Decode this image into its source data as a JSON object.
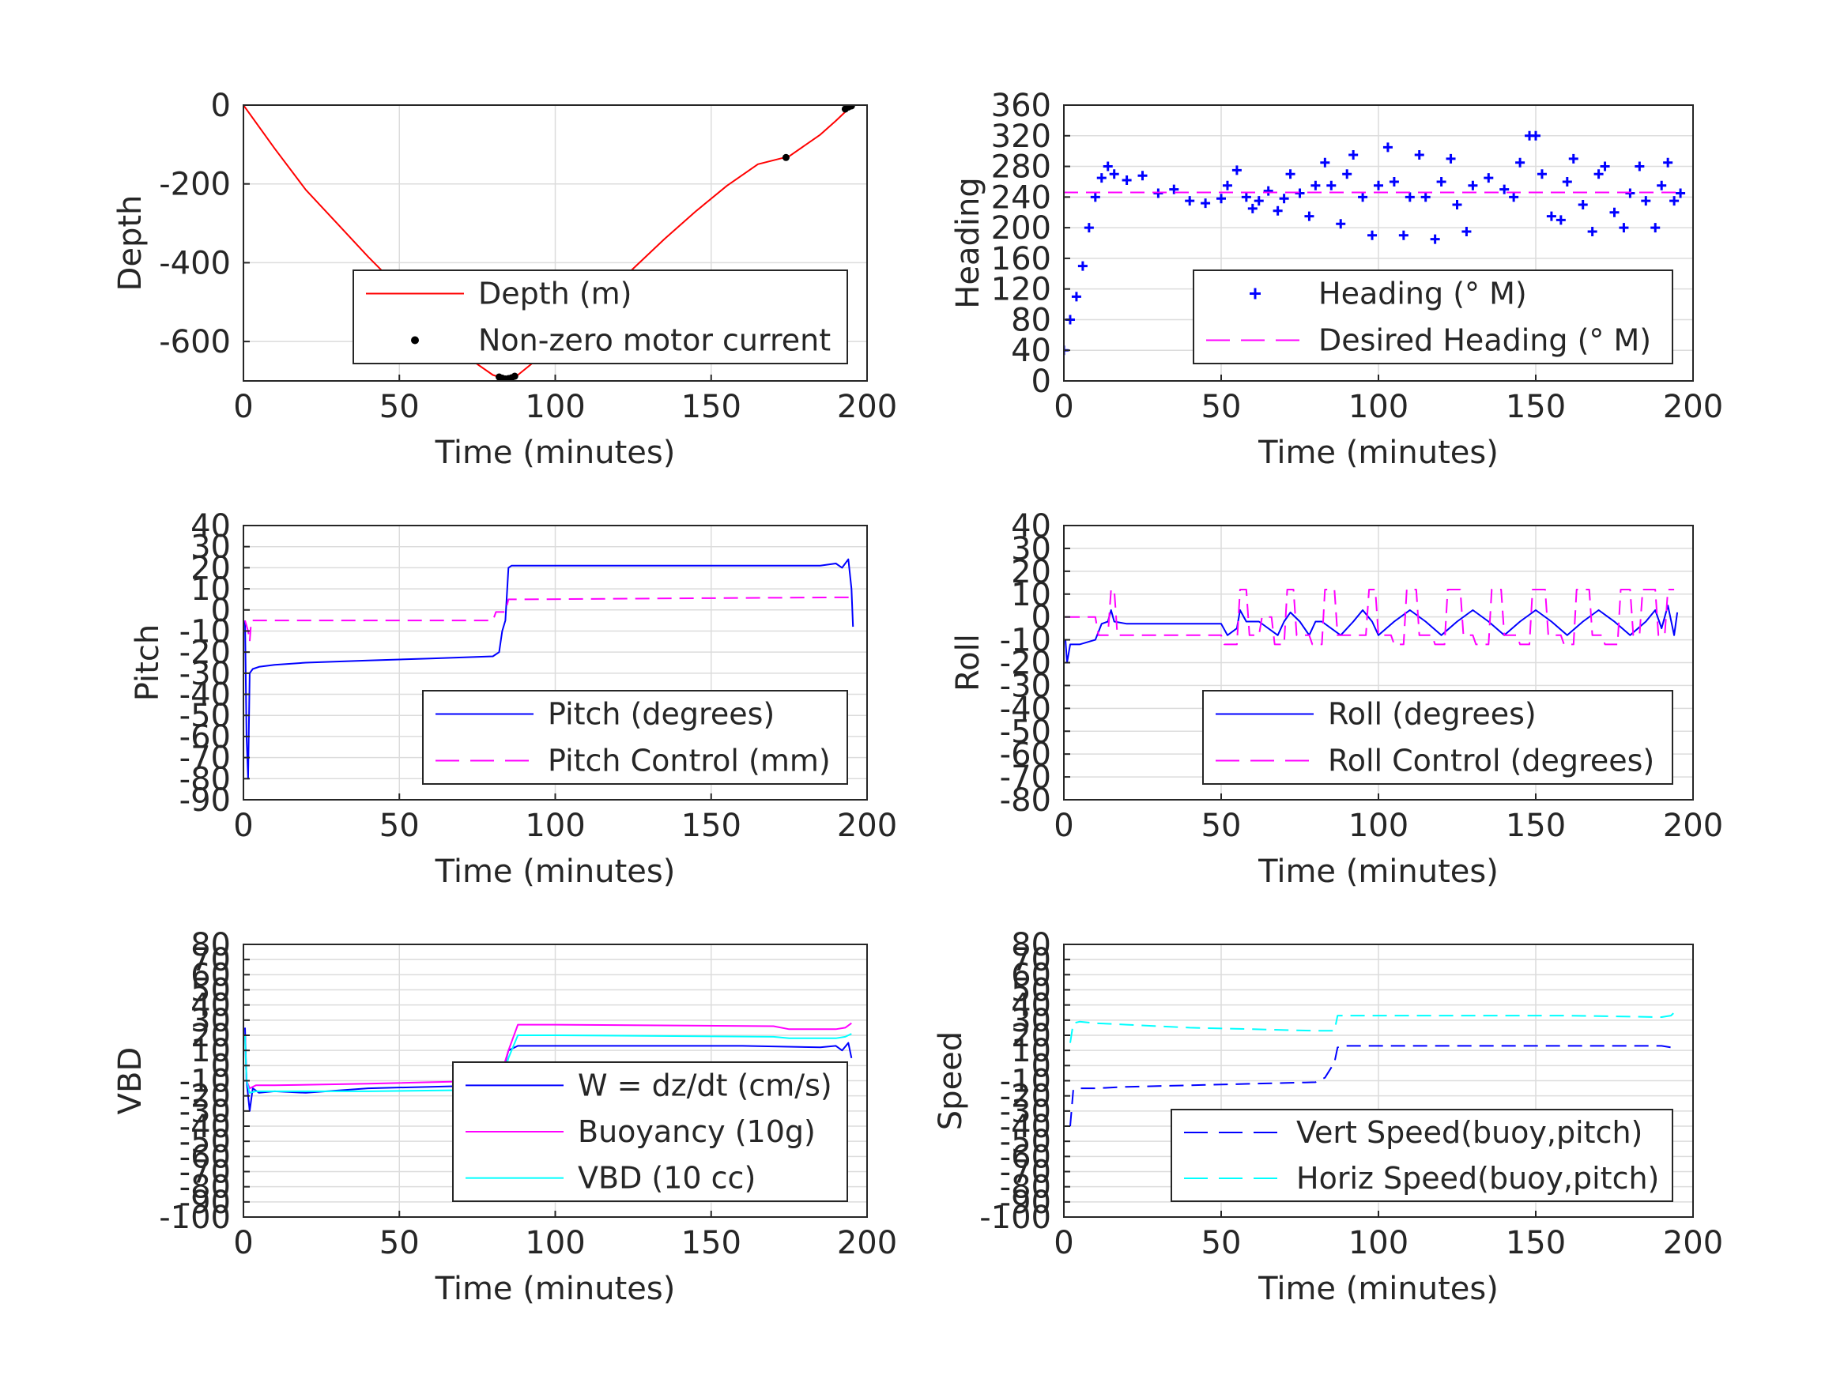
{
  "figure": {
    "background": "#ffffff",
    "grid_color": "#dcdcdc",
    "axis_color": "#262626"
  },
  "chart_data": [
    {
      "id": "depth",
      "type": "line",
      "xlabel": "Time (minutes)",
      "ylabel": "Depth",
      "xlim": [
        0,
        200
      ],
      "ylim": [
        -700,
        0
      ],
      "xticks": [
        0,
        50,
        100,
        150,
        200
      ],
      "xtick_labels": [
        "0",
        "50",
        "100",
        "150",
        "200"
      ],
      "yticks": [
        -600,
        -400,
        -200,
        0
      ],
      "ytick_labels": [
        "-600",
        "-400",
        "-200",
        "0"
      ],
      "grid": true,
      "legend_position": "bottom-right",
      "series": [
        {
          "name": "Depth (m)",
          "style": "line",
          "color": "#ff0000",
          "x": [
            0,
            10,
            20,
            30,
            40,
            50,
            60,
            70,
            80,
            84,
            88,
            95,
            105,
            115,
            125,
            135,
            145,
            155,
            165,
            175,
            185,
            190,
            195
          ],
          "y": [
            0,
            -110,
            -215,
            -300,
            -385,
            -465,
            -550,
            -630,
            -685,
            -695,
            -685,
            -640,
            -565,
            -490,
            -415,
            -340,
            -270,
            -205,
            -150,
            -130,
            -75,
            -40,
            -2
          ]
        },
        {
          "name": "Non-zero motor current",
          "style": "points",
          "color": "#000000",
          "x": [
            82,
            83,
            84,
            85,
            86,
            87,
            174,
            193,
            194,
            195
          ],
          "y": [
            -690,
            -693,
            -695,
            -694,
            -692,
            -688,
            -133,
            -10,
            -5,
            -2
          ]
        }
      ]
    },
    {
      "id": "heading",
      "type": "scatter",
      "xlabel": "Time (minutes)",
      "ylabel": "Heading",
      "xlim": [
        0,
        200
      ],
      "ylim": [
        0,
        360
      ],
      "xticks": [
        0,
        50,
        100,
        150,
        200
      ],
      "xtick_labels": [
        "0",
        "50",
        "100",
        "150",
        "200"
      ],
      "yticks": [
        0,
        40,
        80,
        120,
        160,
        200,
        240,
        280,
        320,
        360
      ],
      "ytick_labels": [
        "0",
        "40",
        "80",
        "120",
        "160",
        "200",
        "240",
        "280",
        "320",
        "360"
      ],
      "grid": true,
      "legend_position": "bottom-right",
      "series": [
        {
          "name": "Heading (° M)",
          "style": "markers",
          "color": "#0000ff",
          "x": [
            0,
            2,
            4,
            6,
            8,
            10,
            12,
            14,
            16,
            20,
            25,
            30,
            35,
            40,
            45,
            50,
            52,
            55,
            58,
            60,
            62,
            65,
            68,
            70,
            72,
            75,
            78,
            80,
            83,
            85,
            88,
            90,
            92,
            95,
            98,
            100,
            103,
            105,
            108,
            110,
            113,
            115,
            118,
            120,
            123,
            125,
            128,
            130,
            135,
            140,
            143,
            145,
            148,
            150,
            152,
            155,
            158,
            160,
            162,
            165,
            168,
            170,
            172,
            175,
            178,
            180,
            183,
            185,
            188,
            190,
            192,
            194,
            196
          ],
          "y": [
            40,
            80,
            110,
            150,
            200,
            240,
            265,
            280,
            270,
            262,
            268,
            245,
            250,
            235,
            232,
            238,
            255,
            275,
            240,
            225,
            235,
            248,
            222,
            238,
            270,
            245,
            215,
            255,
            285,
            255,
            205,
            270,
            295,
            240,
            190,
            255,
            305,
            260,
            190,
            240,
            295,
            240,
            185,
            260,
            290,
            230,
            195,
            255,
            265,
            250,
            240,
            285,
            320,
            320,
            270,
            215,
            210,
            260,
            290,
            230,
            195,
            270,
            280,
            220,
            200,
            245,
            280,
            235,
            200,
            255,
            285,
            235,
            245
          ]
        },
        {
          "name": "Desired Heading (° M)",
          "style": "dashed",
          "color": "#ff00ff",
          "x": [
            0,
            196
          ],
          "y": [
            246,
            246
          ]
        }
      ]
    },
    {
      "id": "pitch",
      "type": "line",
      "xlabel": "Time (minutes)",
      "ylabel": "Pitch",
      "xlim": [
        0,
        200
      ],
      "ylim": [
        -90,
        40
      ],
      "xticks": [
        0,
        50,
        100,
        150,
        200
      ],
      "xtick_labels": [
        "0",
        "50",
        "100",
        "150",
        "200"
      ],
      "yticks": [
        -90,
        -80,
        -70,
        -60,
        -50,
        -40,
        -30,
        -20,
        -10,
        0,
        10,
        20,
        30,
        40
      ],
      "ytick_labels": [
        "-90",
        "-80",
        "-70",
        "-60",
        "-50",
        "-40",
        "-30",
        "-20",
        "-10",
        "0",
        "10",
        "20",
        "30",
        "40"
      ],
      "grid": true,
      "legend_position": "bottom-right",
      "series": [
        {
          "name": "Pitch (degrees)",
          "style": "line",
          "color": "#0000ff",
          "x": [
            0.5,
            1,
            1.5,
            2,
            3,
            5,
            10,
            20,
            40,
            60,
            80,
            82,
            83,
            84,
            85,
            86,
            90,
            120,
            160,
            185,
            190,
            192,
            194,
            195,
            195.5
          ],
          "y": [
            -5,
            -60,
            -80,
            -30,
            -28,
            -27,
            -26,
            -25,
            -24,
            -23,
            -22,
            -20,
            -10,
            -5,
            20,
            21,
            21,
            21,
            21,
            21,
            22,
            20,
            24,
            10,
            -8
          ]
        },
        {
          "name": "Pitch Control (mm)",
          "style": "dashed",
          "color": "#ff00ff",
          "x": [
            0.5,
            1.5,
            2,
            2.5,
            3,
            20,
            60,
            80,
            81,
            84,
            85,
            86,
            90,
            140,
            195
          ],
          "y": [
            -5,
            -10,
            -15,
            -5,
            -5,
            -5,
            -5,
            -5,
            -1,
            -1,
            5,
            5,
            5,
            5.5,
            6
          ]
        }
      ]
    },
    {
      "id": "roll",
      "type": "line",
      "xlabel": "Time (minutes)",
      "ylabel": "Roll",
      "xlim": [
        0,
        200
      ],
      "ylim": [
        -80,
        40
      ],
      "xticks": [
        0,
        50,
        100,
        150,
        200
      ],
      "xtick_labels": [
        "0",
        "50",
        "100",
        "150",
        "200"
      ],
      "yticks": [
        -80,
        -70,
        -60,
        -50,
        -40,
        -30,
        -20,
        -10,
        0,
        10,
        20,
        30,
        40
      ],
      "ytick_labels": [
        "-80",
        "-70",
        "-60",
        "-50",
        "-40",
        "-30",
        "-20",
        "-10",
        "0",
        "10",
        "20",
        "30",
        "40"
      ],
      "grid": true,
      "legend_position": "bottom-right",
      "series": [
        {
          "name": "Roll (degrees)",
          "style": "line",
          "color": "#0000ff",
          "x": [
            0.5,
            1,
            2,
            5,
            10,
            12,
            14,
            15,
            16,
            20,
            30,
            40,
            50,
            52,
            55,
            56,
            58,
            62,
            68,
            70,
            72,
            75,
            78,
            80,
            82,
            88,
            92,
            95,
            98,
            100,
            105,
            110,
            115,
            120,
            125,
            130,
            135,
            140,
            145,
            150,
            155,
            160,
            165,
            170,
            175,
            180,
            185,
            188,
            190,
            192,
            194,
            195
          ],
          "y": [
            -10,
            -20,
            -12,
            -12,
            -10,
            -3,
            -2,
            3,
            -2,
            -3,
            -3,
            -3,
            -3,
            -8,
            -5,
            3,
            -2,
            -2,
            -8,
            -2,
            2,
            -2,
            -8,
            -2,
            -2,
            -8,
            -2,
            3,
            -2,
            -8,
            -2,
            3,
            -2,
            -8,
            -2,
            3,
            -2,
            -8,
            -2,
            3,
            -2,
            -8,
            -2,
            3,
            -2,
            -8,
            -2,
            3,
            -5,
            5,
            -8,
            2
          ]
        },
        {
          "name": "Roll Control (degrees)",
          "style": "dashed",
          "color": "#ff00ff",
          "x": [
            0.5,
            10,
            11,
            14,
            15,
            16,
            17,
            50,
            51,
            55,
            56,
            58,
            59,
            62,
            63,
            66,
            67,
            70,
            71,
            73,
            74,
            78,
            79,
            82,
            83,
            86,
            87,
            96,
            97,
            99,
            100,
            104,
            105,
            108,
            109,
            112,
            113,
            117,
            118,
            121,
            122,
            126,
            127,
            130,
            131,
            135,
            136,
            139,
            140,
            144,
            145,
            148,
            149,
            153,
            154,
            158,
            159,
            162,
            163,
            167,
            168,
            171,
            172,
            176,
            177,
            180,
            181,
            183,
            184,
            188,
            189,
            191,
            192,
            194
          ],
          "y": [
            0,
            0,
            -8,
            -8,
            12,
            12,
            -8,
            -8,
            -12,
            -12,
            12,
            12,
            -8,
            -8,
            0,
            0,
            -12,
            -12,
            12,
            12,
            -8,
            -8,
            -12,
            -12,
            12,
            12,
            -8,
            -8,
            12,
            12,
            -8,
            -8,
            -12,
            -12,
            12,
            12,
            -8,
            -8,
            -12,
            -12,
            12,
            12,
            -8,
            -8,
            -12,
            -12,
            12,
            12,
            -8,
            -8,
            -12,
            -12,
            12,
            12,
            -8,
            -8,
            -12,
            -12,
            12,
            12,
            -8,
            -8,
            -12,
            -12,
            12,
            12,
            -8,
            -8,
            12,
            12,
            -8,
            -8,
            12,
            12
          ]
        }
      ]
    },
    {
      "id": "vbd",
      "type": "line",
      "xlabel": "Time (minutes)",
      "ylabel": "VBD",
      "xlim": [
        0,
        200
      ],
      "ylim": [
        -100,
        80
      ],
      "xticks": [
        0,
        50,
        100,
        150,
        200
      ],
      "xtick_labels": [
        "0",
        "50",
        "100",
        "150",
        "200"
      ],
      "yticks": [
        -100,
        -90,
        -80,
        -70,
        -60,
        -50,
        -40,
        -30,
        -20,
        -10,
        0,
        10,
        20,
        30,
        40,
        50,
        60,
        70,
        80
      ],
      "ytick_labels": [
        "-100",
        "-90",
        "-80",
        "-70",
        "-60",
        "-50",
        "-40",
        "-30",
        "-20",
        "-10",
        "0",
        "10",
        "20",
        "30",
        "40",
        "50",
        "60",
        "70",
        "80"
      ],
      "grid": true,
      "legend_position": "bottom-right",
      "series": [
        {
          "name": "W = dz/dt (cm/s)",
          "style": "line",
          "color": "#0000ff",
          "x": [
            0.5,
            1,
            2,
            3,
            5,
            10,
            20,
            40,
            60,
            80,
            82,
            85,
            88,
            90,
            120,
            160,
            185,
            190,
            192,
            194,
            195
          ],
          "y": [
            25,
            -10,
            -30,
            -15,
            -18,
            -17,
            -18,
            -15,
            -14,
            -13,
            -13,
            10,
            13,
            13,
            13,
            13,
            12,
            13,
            10,
            15,
            5
          ]
        },
        {
          "name": "Buoyancy (10g)",
          "style": "line",
          "color": "#ff00ff",
          "x": [
            0.5,
            1,
            2,
            4,
            10,
            40,
            80,
            82,
            85,
            88,
            100,
            170,
            175,
            190,
            193,
            195
          ],
          "y": [
            20,
            -10,
            -15,
            -13,
            -13,
            -12,
            -10,
            -10,
            10,
            27,
            27,
            26,
            24,
            24,
            25,
            28
          ]
        },
        {
          "name": "VBD (10 cc)",
          "style": "line",
          "color": "#00ffff",
          "x": [
            0.5,
            1,
            2,
            4,
            10,
            40,
            80,
            82,
            85,
            88,
            100,
            170,
            175,
            190,
            193,
            195
          ],
          "y": [
            20,
            -10,
            -18,
            -17,
            -17,
            -17,
            -16,
            -16,
            5,
            20,
            20,
            19,
            18,
            18,
            19,
            21
          ]
        }
      ]
    },
    {
      "id": "speed",
      "type": "line",
      "xlabel": "Time (minutes)",
      "ylabel": "Speed",
      "xlim": [
        0,
        200
      ],
      "ylim": [
        -100,
        80
      ],
      "xticks": [
        0,
        50,
        100,
        150,
        200
      ],
      "xtick_labels": [
        "0",
        "50",
        "100",
        "150",
        "200"
      ],
      "yticks": [
        -100,
        -90,
        -80,
        -70,
        -60,
        -50,
        -40,
        -30,
        -20,
        -10,
        0,
        10,
        20,
        30,
        40,
        50,
        60,
        70,
        80
      ],
      "ytick_labels": [
        "-100",
        "-90",
        "-80",
        "-70",
        "-60",
        "-50",
        "-40",
        "-30",
        "-20",
        "-10",
        "0",
        "10",
        "20",
        "30",
        "40",
        "50",
        "60",
        "70",
        "80"
      ],
      "grid": true,
      "legend_position": "bottom-right",
      "series": [
        {
          "name": "Vert Speed(buoy,pitch)",
          "style": "dashed",
          "color": "#0000ff",
          "x": [
            2,
            3,
            5,
            10,
            20,
            40,
            60,
            80,
            83,
            86,
            87,
            90,
            120,
            160,
            190,
            193,
            194
          ],
          "y": [
            -40,
            -16,
            -15,
            -15,
            -14,
            -13,
            -12,
            -11,
            -8,
            2,
            12,
            13,
            13,
            13,
            13,
            12,
            16
          ]
        },
        {
          "name": "Horiz Speed(buoy,pitch)",
          "style": "dashed",
          "color": "#00ffff",
          "x": [
            2,
            3,
            5,
            10,
            20,
            40,
            60,
            80,
            86,
            87,
            88,
            120,
            160,
            190,
            193,
            194
          ],
          "y": [
            15,
            28,
            29,
            28,
            27,
            25,
            24,
            23,
            23,
            33,
            33,
            33,
            33,
            32,
            33,
            35
          ]
        }
      ]
    }
  ]
}
